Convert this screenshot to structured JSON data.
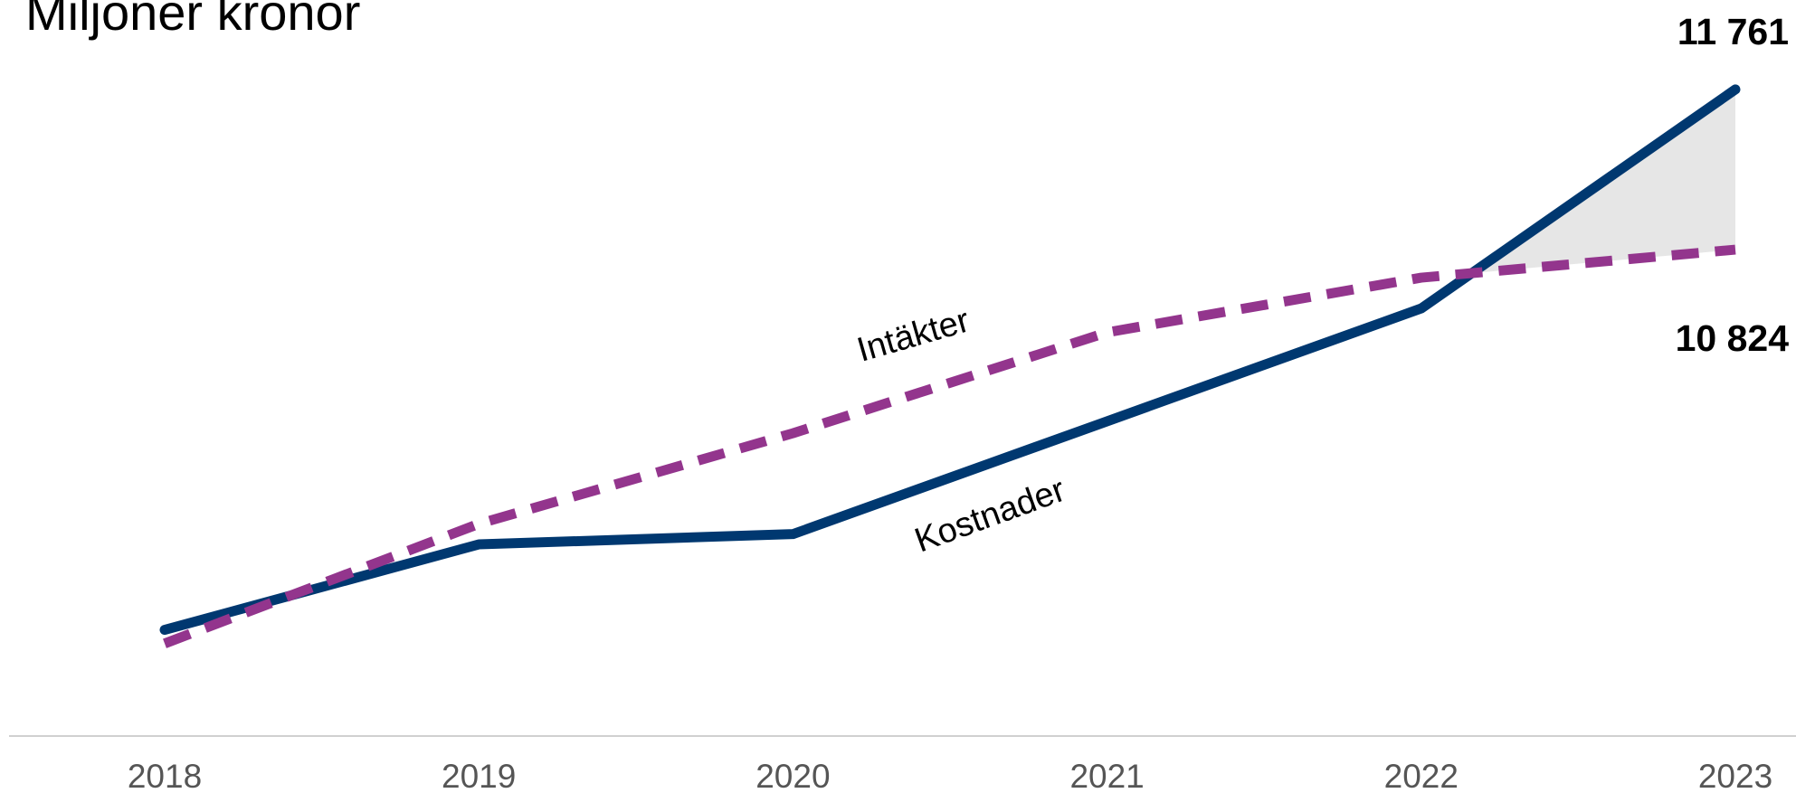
{
  "chart_data": {
    "type": "line",
    "title": "Miljoner kronor",
    "categories": [
      "2018",
      "2019",
      "2020",
      "2021",
      "2022",
      "2023"
    ],
    "series": [
      {
        "name": "Kostnader",
        "color": "#003870",
        "values": [
          8600,
          9100,
          9160,
          9820,
          10480,
          11761
        ],
        "value_labels": [
          null,
          null,
          null,
          null,
          null,
          "11 761"
        ]
      },
      {
        "name": "Intäkter",
        "color": "#93358d",
        "dashed": true,
        "values": [
          8520,
          9220,
          9750,
          10340,
          10660,
          10824
        ],
        "value_labels": [
          null,
          null,
          null,
          null,
          null,
          "10 824"
        ]
      }
    ],
    "ylim": [
      8000,
      12300
    ]
  }
}
